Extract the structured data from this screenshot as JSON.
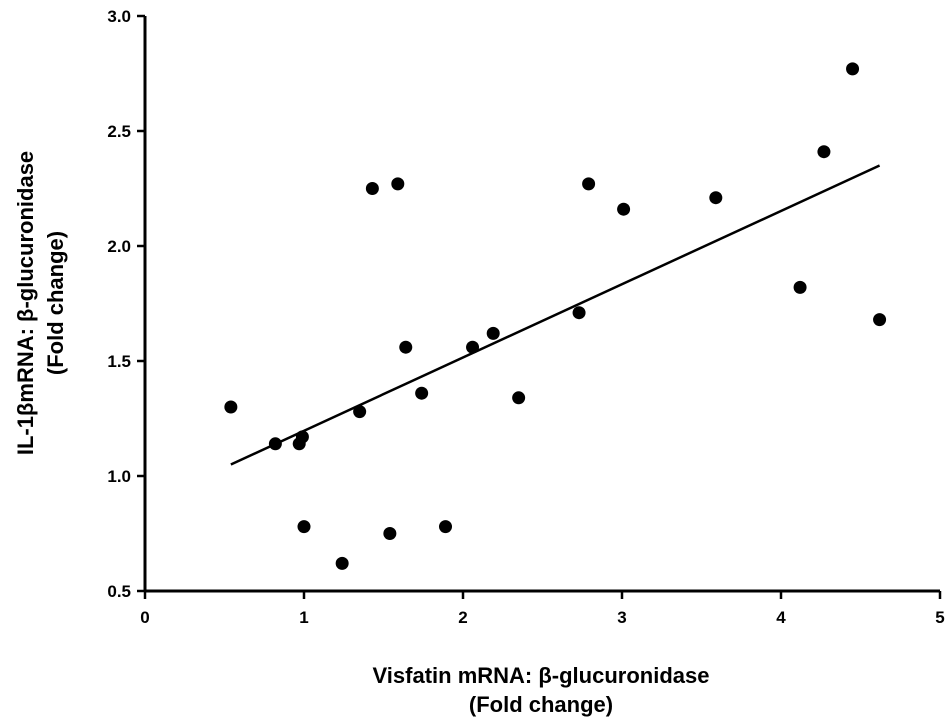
{
  "chart_data": {
    "type": "scatter",
    "xlabel_lines": [
      "Visfatin mRNA: β-glucuronidase",
      "(Fold change)"
    ],
    "ylabel_lines": [
      "IL-1βmRNA: β-glucuronidase",
      "(Fold change)"
    ],
    "xlim": [
      0,
      5
    ],
    "ylim": [
      0.5,
      3.0
    ],
    "x_ticks": [
      0,
      1,
      2,
      3,
      4,
      5
    ],
    "x_tick_labels": [
      "0",
      "1",
      "2",
      "3",
      "4",
      "5"
    ],
    "y_ticks": [
      0.5,
      1.0,
      1.5,
      2.0,
      2.5,
      3.0
    ],
    "y_tick_labels": [
      "0.5",
      "1.0",
      "1.5",
      "2.0",
      "2.5",
      "3.0"
    ],
    "grid": false,
    "legend": "none",
    "points": [
      {
        "x": 0.54,
        "y": 1.3
      },
      {
        "x": 0.82,
        "y": 1.14
      },
      {
        "x": 0.97,
        "y": 1.14
      },
      {
        "x": 0.99,
        "y": 1.17
      },
      {
        "x": 1.0,
        "y": 0.78
      },
      {
        "x": 1.24,
        "y": 0.62
      },
      {
        "x": 1.35,
        "y": 1.28
      },
      {
        "x": 1.43,
        "y": 2.25
      },
      {
        "x": 1.54,
        "y": 0.75
      },
      {
        "x": 1.59,
        "y": 2.27
      },
      {
        "x": 1.64,
        "y": 1.56
      },
      {
        "x": 1.74,
        "y": 1.36
      },
      {
        "x": 1.89,
        "y": 0.78
      },
      {
        "x": 2.06,
        "y": 1.56
      },
      {
        "x": 2.19,
        "y": 1.62
      },
      {
        "x": 2.35,
        "y": 1.34
      },
      {
        "x": 2.73,
        "y": 1.71
      },
      {
        "x": 2.79,
        "y": 2.27
      },
      {
        "x": 3.01,
        "y": 2.16
      },
      {
        "x": 3.59,
        "y": 2.21
      },
      {
        "x": 4.12,
        "y": 1.82
      },
      {
        "x": 4.27,
        "y": 2.41
      },
      {
        "x": 4.45,
        "y": 2.77
      },
      {
        "x": 4.62,
        "y": 1.68
      }
    ],
    "trendline": {
      "x": [
        0.54,
        4.62
      ],
      "y": [
        1.05,
        2.35
      ]
    },
    "colors": {
      "points": "#000000",
      "axes": "#000000",
      "background": "#ffffff"
    }
  }
}
